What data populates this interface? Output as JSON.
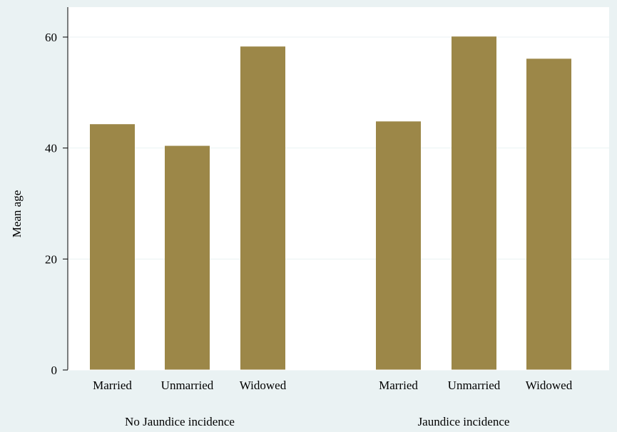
{
  "chart_data": {
    "type": "bar",
    "ylabel": "Mean age",
    "ylim": [
      0,
      60
    ],
    "yticks": [
      0,
      20,
      40,
      60
    ],
    "grid": true,
    "bar_color": "#9c8748",
    "background": "#eaf2f3",
    "plot_background": "#ffffff",
    "groups": [
      {
        "label": "No Jaundice incidence",
        "categories": [
          "Married",
          "Unmarried",
          "Widowed"
        ],
        "values": [
          44.3,
          40.4,
          58.3
        ]
      },
      {
        "label": "Jaundice incidence",
        "categories": [
          "Married",
          "Unmarried",
          "Widowed"
        ],
        "values": [
          44.8,
          60.1,
          56.1
        ]
      }
    ]
  }
}
